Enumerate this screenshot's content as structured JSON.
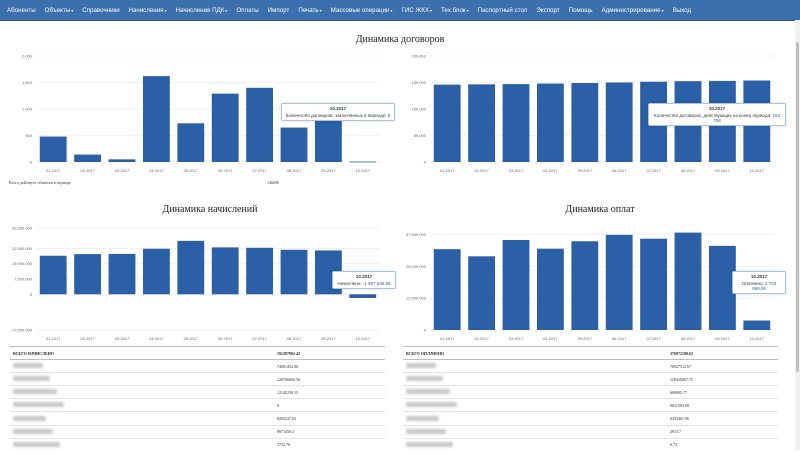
{
  "nav": {
    "items": [
      {
        "label": "Абоненты",
        "dropdown": false
      },
      {
        "label": "Объекты",
        "dropdown": true
      },
      {
        "label": "Справочники",
        "dropdown": false
      },
      {
        "label": "Начисления",
        "dropdown": true
      },
      {
        "label": "Начисления ПДК",
        "dropdown": true
      },
      {
        "label": "Оплаты",
        "dropdown": false
      },
      {
        "label": "Импорт",
        "dropdown": false
      },
      {
        "label": "Печать",
        "dropdown": true
      },
      {
        "label": "Массовые операции",
        "dropdown": true
      },
      {
        "label": "ГИС ЖКХ",
        "dropdown": true
      },
      {
        "label": "Тех.блок",
        "dropdown": true
      },
      {
        "label": "Паспортный стол",
        "dropdown": false
      },
      {
        "label": "Экспорт",
        "dropdown": false
      },
      {
        "label": "Помощь",
        "dropdown": false
      },
      {
        "label": "Администрирование",
        "dropdown": true
      },
      {
        "label": "Выход",
        "dropdown": false
      }
    ],
    "caret": "▾"
  },
  "titles": {
    "contracts": "Динамика договоров",
    "charges": "Динамика начислений",
    "payments": "Динамика оплат"
  },
  "contracts_summary": {
    "label": "Всего действует объектов в периоде:",
    "value": "146606"
  },
  "charts": {
    "contracts_new": {
      "tooltip": {
        "title": "10.2017",
        "label": "Количество договоров, заключённых в периоде:",
        "value": "8"
      }
    },
    "contracts_active": {
      "tooltip": {
        "title": "10.2017",
        "label": "Количество договоров, действующих на конец периода:",
        "value": "153 758"
      }
    },
    "charges": {
      "tooltip": {
        "title": "10.2017",
        "label": "Начислено:",
        "value": "-1 807 648.55"
      }
    },
    "payments": {
      "tooltip": {
        "title": "10.2017",
        "label": "Оплачено:",
        "value": "3 723 099.06"
      }
    }
  },
  "tables": {
    "charges": {
      "total_label": "ВСЕГО НАЧИСЛЕНО",
      "total_value": "191287902.42",
      "rows": [
        "74001452.86",
        "120796656.56",
        "12145239.15",
        "0",
        "8265237.63",
        "8971450.2",
        "3752.76"
      ]
    },
    "payments": {
      "total_label": "ВСЕГО ОПЛАЧЕНО",
      "total_value": "376972190.62",
      "rows": [
        "76927512.67",
        "118320457.75",
        "698005.77",
        "9611503.09",
        "6353467.96",
        "2913.7",
        "6.73"
      ]
    }
  },
  "colors": {
    "bar": "#2b5fa6",
    "grid": "#e6e6e6",
    "nav": "#3b6fae"
  },
  "chart_data": [
    {
      "id": "contracts_new",
      "type": "bar",
      "title": "Динамика договоров",
      "categories": [
        "01.2017",
        "02.2017",
        "03.2017",
        "04.2017",
        "05.2017",
        "06.2017",
        "07.2017",
        "08.2017",
        "09.2017",
        "10.2017"
      ],
      "values": [
        480,
        140,
        50,
        1620,
        730,
        1290,
        1400,
        650,
        790,
        8
      ],
      "ylim": [
        0,
        2000
      ],
      "yticks": [
        0,
        500,
        1000,
        1500,
        2000
      ],
      "ytick_labels": [
        "0",
        "500",
        "1,000",
        "1,500",
        "2,000"
      ]
    },
    {
      "id": "contracts_active",
      "type": "bar",
      "categories": [
        "01.2017",
        "02.2017",
        "03.2017",
        "04.2017",
        "05.2017",
        "06.2017",
        "07.2017",
        "08.2017",
        "09.2017",
        "10.2017"
      ],
      "values": [
        146000,
        146500,
        147000,
        148000,
        149000,
        150000,
        151500,
        152500,
        153000,
        153758
      ],
      "ylim": [
        0,
        200000
      ],
      "yticks": [
        0,
        50000,
        100000,
        150000,
        200000
      ],
      "ytick_labels": [
        "0",
        "50,000",
        "100,000",
        "150,000",
        "200,000"
      ]
    },
    {
      "id": "charges",
      "type": "bar",
      "title": "Динамика начислений",
      "categories": [
        "01.2017",
        "02.2017",
        "03.2017",
        "04.2017",
        "05.2017",
        "06.2017",
        "07.2017",
        "08.2017",
        "09.2017",
        "10.2017"
      ],
      "values": [
        18900000,
        19700000,
        19800000,
        22300000,
        26200000,
        23000000,
        22800000,
        21800000,
        21500000,
        -1807648.55
      ],
      "ylim": [
        -17500000,
        32500000
      ],
      "yticks": [
        -17500000,
        0,
        7500000,
        15000000,
        22500000,
        32500000
      ],
      "ytick_labels": [
        "-17,500,000",
        "0",
        "7,500,000",
        "15,000,000",
        "22,500,000",
        "32,500,000"
      ]
    },
    {
      "id": "payments",
      "type": "bar",
      "title": "Динамика оплат",
      "categories": [
        "01.2017",
        "02.2017",
        "03.2017",
        "04.2017",
        "05.2017",
        "06.2017",
        "07.2017",
        "08.2017",
        "09.2017",
        "10.2017"
      ],
      "values": [
        31700000,
        28900000,
        35300000,
        31900000,
        34800000,
        37300000,
        35800000,
        38200000,
        33000000,
        3723099.06
      ],
      "ylim": [
        0,
        40000000
      ],
      "yticks": [
        0,
        12500000,
        25000000,
        37500000
      ],
      "ytick_labels": [
        "0",
        "12,500,000",
        "25,000,000",
        "37,500,000"
      ]
    }
  ]
}
